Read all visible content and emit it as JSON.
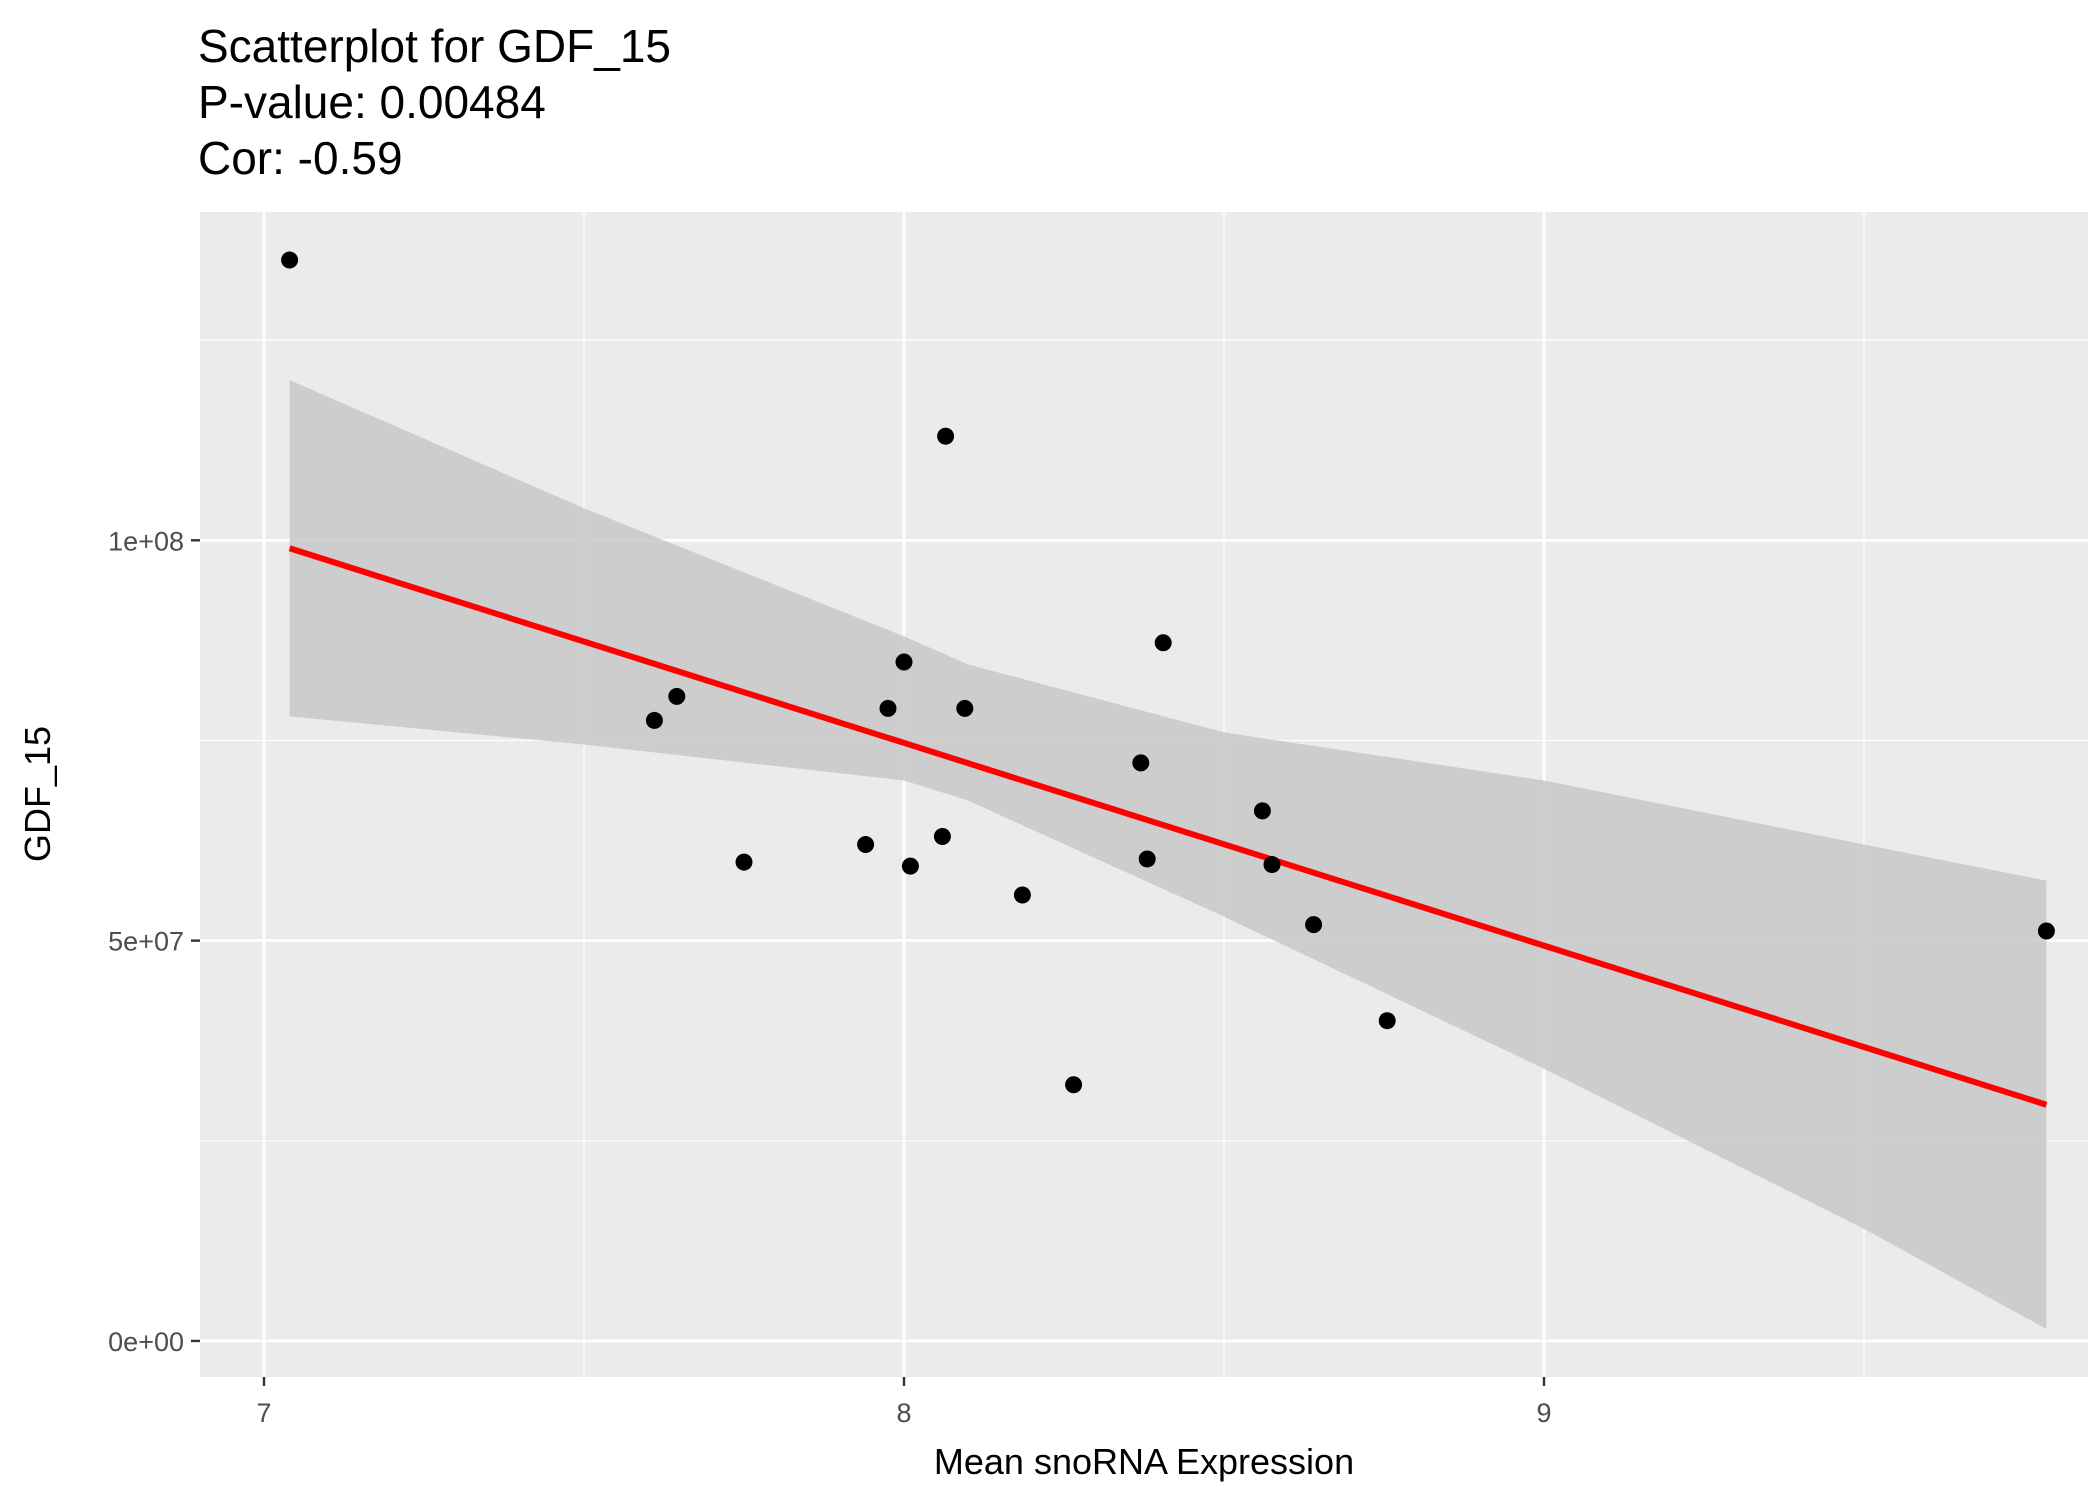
{
  "chart_data": {
    "type": "scatter",
    "title_lines": [
      "Scatterplot for GDF_15",
      "P-value: 0.00484",
      "Cor: -0.59"
    ],
    "xlabel": "Mean snoRNA Expression",
    "ylabel": "GDF_15",
    "xlim": [
      6.9,
      9.85
    ],
    "ylim": [
      -4500000,
      141000000
    ],
    "x_ticks": [
      7,
      8,
      9
    ],
    "x_tick_labels": [
      "7",
      "8",
      "9"
    ],
    "y_ticks": [
      0,
      50000000,
      100000000
    ],
    "y_tick_labels": [
      "0e+00",
      "5e+07",
      "1e+08"
    ],
    "grid": true,
    "colors": {
      "panel_background": "#ebebeb",
      "grid": "#ffffff",
      "points": "#000000",
      "fit_line": "#ff0000",
      "confidence_band": "#c8c8c8"
    },
    "points": [
      {
        "x": 7.04,
        "y": 135000000
      },
      {
        "x": 7.61,
        "y": 77500000
      },
      {
        "x": 7.645,
        "y": 80500000
      },
      {
        "x": 7.75,
        "y": 59800000
      },
      {
        "x": 7.94,
        "y": 62000000
      },
      {
        "x": 7.975,
        "y": 79000000
      },
      {
        "x": 8.0,
        "y": 84800000
      },
      {
        "x": 8.01,
        "y": 59300000
      },
      {
        "x": 8.06,
        "y": 63000000
      },
      {
        "x": 8.065,
        "y": 113000000
      },
      {
        "x": 8.095,
        "y": 79000000
      },
      {
        "x": 8.185,
        "y": 55700000
      },
      {
        "x": 8.265,
        "y": 32000000
      },
      {
        "x": 8.37,
        "y": 72200000
      },
      {
        "x": 8.38,
        "y": 60200000
      },
      {
        "x": 8.405,
        "y": 87200000
      },
      {
        "x": 8.56,
        "y": 66200000
      },
      {
        "x": 8.575,
        "y": 59500000
      },
      {
        "x": 8.64,
        "y": 52000000
      },
      {
        "x": 8.755,
        "y": 40000000
      },
      {
        "x": 9.785,
        "y": 51200000
      }
    ],
    "fit_line": {
      "x": [
        7.04,
        9.785
      ],
      "y": [
        99000000,
        29500000
      ]
    },
    "confidence_band": {
      "x": [
        7.04,
        7.5,
        8.0,
        8.1,
        8.5,
        9.0,
        9.5,
        9.785
      ],
      "upper": [
        120000000,
        104000000,
        88000000,
        84500000,
        76000000,
        70000000,
        62000000,
        57500000
      ],
      "lower": [
        78000000,
        74500000,
        70000000,
        67500000,
        53000000,
        34000000,
        14000000,
        1500000
      ]
    }
  }
}
